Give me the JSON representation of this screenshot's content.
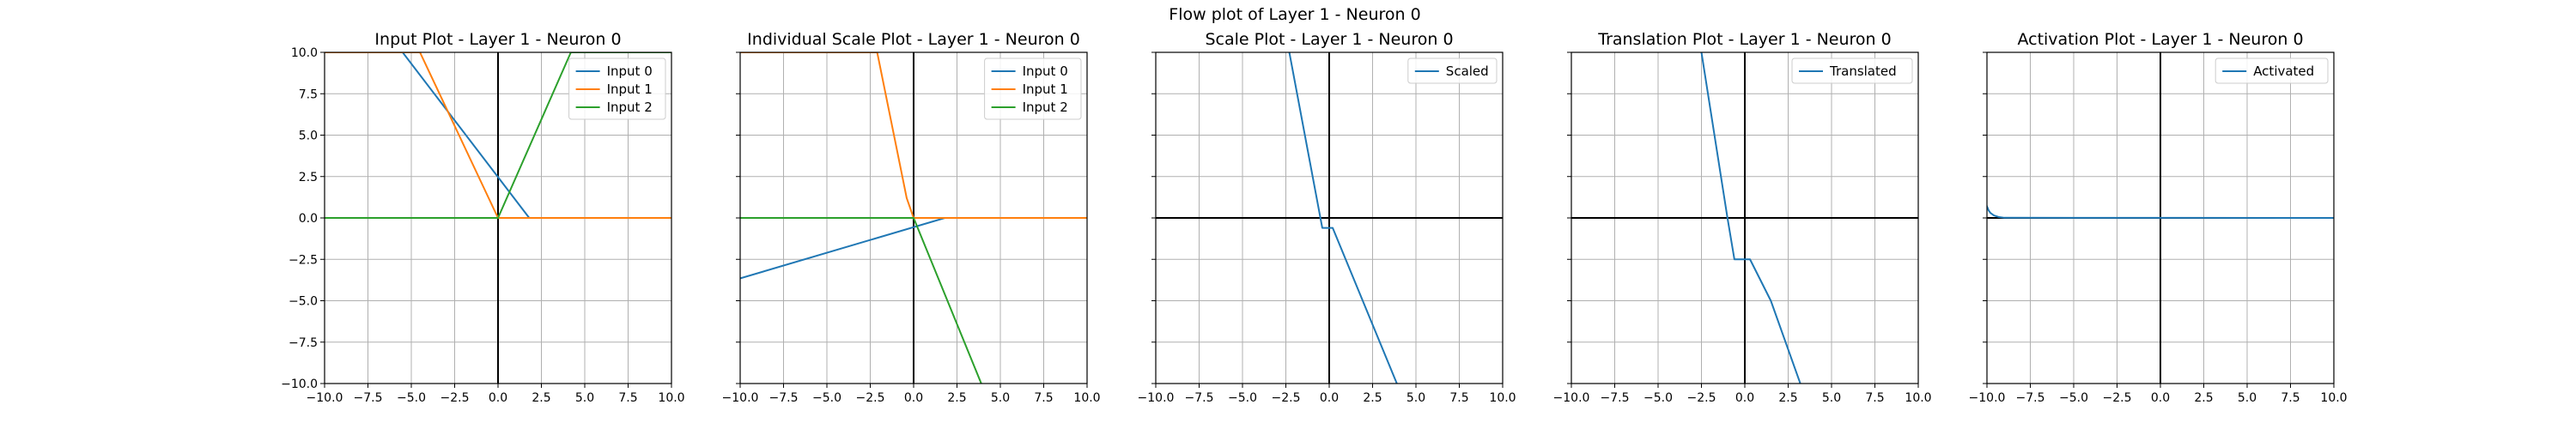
{
  "suptitle": "Flow plot of Layer 1 - Neuron 0",
  "colors": {
    "c0": "#1f77b4",
    "c1": "#ff7f0e",
    "c2": "#2ca02c",
    "grid": "#b0b0b0",
    "axis_zero": "#000000"
  },
  "chart_data": [
    {
      "type": "line",
      "title": "Input Plot - Layer 1 - Neuron 0",
      "xlim": [
        -10,
        10
      ],
      "ylim": [
        -10,
        10
      ],
      "xticks": [
        -10,
        -7.5,
        -5,
        -2.5,
        0,
        2.5,
        5,
        7.5,
        10
      ],
      "yticks": [
        -10,
        -7.5,
        -5,
        -2.5,
        0,
        2.5,
        5,
        7.5,
        10
      ],
      "xtick_labels": [
        "−10.0",
        "−7.5",
        "−5.0",
        "−2.5",
        "0.0",
        "2.5",
        "5.0",
        "7.5",
        "10.0"
      ],
      "ytick_labels": [
        "−10.0",
        "−7.5",
        "−5.0",
        "−2.5",
        "0.0",
        "2.5",
        "5.0",
        "7.5",
        "10.0"
      ],
      "show_ytick_labels": true,
      "grid": true,
      "legend": "upper right",
      "series": [
        {
          "name": "Input 0",
          "color": "#1f77b4",
          "x": [
            -10,
            -5.5,
            1.8,
            10
          ],
          "y": [
            10,
            10,
            0,
            0
          ]
        },
        {
          "name": "Input 1",
          "color": "#ff7f0e",
          "x": [
            -10,
            -4.5,
            0,
            10
          ],
          "y": [
            10,
            10,
            0,
            0
          ]
        },
        {
          "name": "Input 2",
          "color": "#2ca02c",
          "x": [
            -10,
            0,
            4.2,
            10
          ],
          "y": [
            0,
            0,
            10,
            10
          ]
        }
      ]
    },
    {
      "type": "line",
      "title": "Individual Scale Plot - Layer 1 - Neuron 0",
      "xlim": [
        -10,
        10
      ],
      "ylim": [
        -10,
        10
      ],
      "xticks": [
        -10,
        -7.5,
        -5,
        -2.5,
        0,
        2.5,
        5,
        7.5,
        10
      ],
      "yticks": [
        -10,
        -7.5,
        -5,
        -2.5,
        0,
        2.5,
        5,
        7.5,
        10
      ],
      "xtick_labels": [
        "−10.0",
        "−7.5",
        "−5.0",
        "−2.5",
        "0.0",
        "2.5",
        "5.0",
        "7.5",
        "10.0"
      ],
      "ytick_labels": [],
      "show_ytick_labels": false,
      "grid": true,
      "legend": "upper right",
      "series": [
        {
          "name": "Input 0",
          "color": "#1f77b4",
          "x": [
            -10,
            1.8,
            10
          ],
          "y": [
            -3.65,
            0,
            0
          ]
        },
        {
          "name": "Input 1",
          "color": "#ff7f0e",
          "x": [
            -10,
            -2.1,
            -0.4,
            0,
            10
          ],
          "y": [
            10,
            10,
            1.2,
            0,
            0
          ]
        },
        {
          "name": "Input 2",
          "color": "#2ca02c",
          "x": [
            -10,
            0,
            3.9
          ],
          "y": [
            0,
            0,
            -10
          ]
        }
      ]
    },
    {
      "type": "line",
      "title": "Scale Plot - Layer 1 - Neuron 0",
      "xlim": [
        -10,
        10
      ],
      "ylim": [
        -10,
        10
      ],
      "xticks": [
        -10,
        -7.5,
        -5,
        -2.5,
        0,
        2.5,
        5,
        7.5,
        10
      ],
      "yticks": [
        -10,
        -7.5,
        -5,
        -2.5,
        0,
        2.5,
        5,
        7.5,
        10
      ],
      "xtick_labels": [
        "−10.0",
        "−7.5",
        "−5.0",
        "−2.5",
        "0.0",
        "2.5",
        "5.0",
        "7.5",
        "10.0"
      ],
      "ytick_labels": [],
      "show_ytick_labels": false,
      "grid": true,
      "legend": "upper right",
      "series": [
        {
          "name": "Scaled",
          "color": "#1f77b4",
          "x": [
            -2.3,
            -0.4,
            -0.1,
            0.2,
            3.9
          ],
          "y": [
            10,
            -0.6,
            -0.6,
            -0.6,
            -10
          ]
        }
      ]
    },
    {
      "type": "line",
      "title": "Translation Plot - Layer 1 - Neuron 0",
      "xlim": [
        -10,
        10
      ],
      "ylim": [
        -10,
        10
      ],
      "xticks": [
        -10,
        -7.5,
        -5,
        -2.5,
        0,
        2.5,
        5,
        7.5,
        10
      ],
      "yticks": [
        -10,
        -7.5,
        -5,
        -2.5,
        0,
        2.5,
        5,
        7.5,
        10
      ],
      "xtick_labels": [
        "−10.0",
        "−7.5",
        "−5.0",
        "−2.5",
        "0.0",
        "2.5",
        "5.0",
        "7.5",
        "10.0"
      ],
      "ytick_labels": [],
      "show_ytick_labels": false,
      "grid": true,
      "legend": "upper right",
      "series": [
        {
          "name": "Translated",
          "color": "#1f77b4",
          "x": [
            -2.5,
            -1.0,
            -0.6,
            -0.3,
            0.3,
            1.5,
            3.2
          ],
          "y": [
            10,
            0,
            -2.5,
            -2.5,
            -2.5,
            -5.0,
            -10
          ]
        }
      ]
    },
    {
      "type": "line",
      "title": "Activation Plot - Layer 1 - Neuron 0",
      "xlim": [
        -10,
        10
      ],
      "ylim": [
        -10,
        10
      ],
      "xticks": [
        -10,
        -7.5,
        -5,
        -2.5,
        0,
        2.5,
        5,
        7.5,
        10
      ],
      "yticks": [
        -10,
        -7.5,
        -5,
        -2.5,
        0,
        2.5,
        5,
        7.5,
        10
      ],
      "xtick_labels": [
        "−10.0",
        "−7.5",
        "−5.0",
        "−2.5",
        "0.0",
        "2.5",
        "5.0",
        "7.5",
        "10.0"
      ],
      "ytick_labels": [],
      "show_ytick_labels": false,
      "grid": true,
      "legend": "upper right",
      "series": [
        {
          "name": "Activated",
          "color": "#1f77b4",
          "x": [
            -10,
            -9.9,
            -9.8,
            -9.6,
            -9.3,
            -9,
            10
          ],
          "y": [
            0.7,
            0.45,
            0.3,
            0.15,
            0.05,
            0.01,
            0
          ]
        }
      ]
    }
  ]
}
